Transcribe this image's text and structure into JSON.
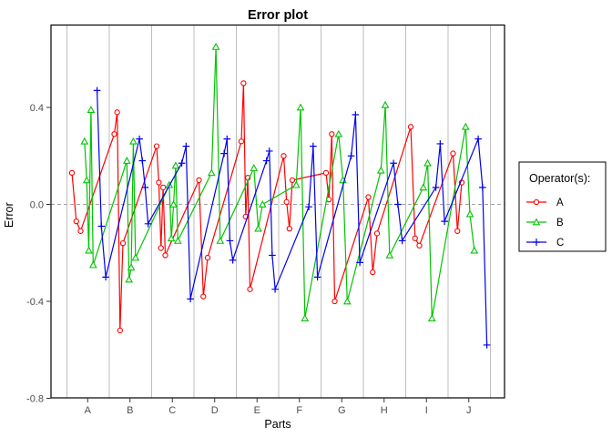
{
  "chart_data": {
    "type": "line",
    "title": "Error plot",
    "xlabel": "Parts",
    "ylabel": "Error",
    "categories": [
      "A",
      "B",
      "C",
      "D",
      "E",
      "F",
      "G",
      "H",
      "I",
      "J"
    ],
    "y_ticks": [
      "0.4",
      "0.0",
      "-0.4",
      "-0.8"
    ],
    "y_tick_values": [
      0.4,
      0.0,
      -0.4,
      -0.8
    ],
    "ylim": [
      -0.8,
      0.74
    ],
    "zero_line_value": 0.0,
    "grid": "vertical part separators",
    "legend_title": "Operator(s):",
    "legend_position": "right",
    "colors": {
      "operator_a": "#ff0000",
      "operator_b": "#00c400",
      "operator_c": "#0000ee",
      "separator_gray": "#bebebe",
      "zero_dash_gray": "#a3a3a3",
      "tick_label_gray": "#4d4d4d"
    },
    "series": [
      {
        "name": "A",
        "color": "#ff0000",
        "marker": "circle",
        "values_by_part": [
          [
            0.13,
            -0.07,
            -0.11
          ],
          [
            0.29,
            0.38,
            -0.52,
            -0.16
          ],
          [
            0.24,
            0.09,
            -0.18,
            0.07,
            -0.21
          ],
          [
            0.1,
            -0.38,
            -0.22
          ],
          [
            0.26,
            0.5,
            -0.05,
            0.11,
            -0.35
          ],
          [
            0.2,
            0.01,
            -0.1,
            0.1
          ],
          [
            0.13,
            0.02,
            0.29,
            -0.4
          ],
          [
            0.03,
            -0.28,
            -0.12
          ],
          [
            0.32,
            -0.14,
            -0.17
          ],
          [
            0.21,
            -0.11,
            0.09
          ]
        ]
      },
      {
        "name": "B",
        "color": "#00c400",
        "marker": "triangle",
        "values_by_part": [
          [
            0.26,
            0.1,
            -0.19,
            0.39,
            -0.25
          ],
          [
            0.18,
            -0.31,
            -0.26,
            0.26,
            -0.22
          ],
          [
            0.08,
            -0.14,
            0.0,
            0.16,
            -0.15
          ],
          [
            0.13,
            0.65,
            -0.15
          ],
          [
            0.15,
            -0.1,
            0.0
          ],
          [
            0.08,
            0.4,
            -0.47
          ],
          [
            0.29,
            0.1,
            -0.4
          ],
          [
            0.14,
            0.41,
            -0.21
          ],
          [
            0.07,
            0.17,
            -0.47
          ],
          [
            0.32,
            -0.04,
            -0.19
          ]
        ]
      },
      {
        "name": "C",
        "color": "#0000ee",
        "marker": "plus",
        "values_by_part": [
          [
            0.47,
            -0.09,
            -0.3
          ],
          [
            0.27,
            0.18,
            0.07,
            -0.08
          ],
          [
            0.17,
            0.24,
            -0.39
          ],
          [
            0.21,
            0.27,
            -0.15,
            -0.23
          ],
          [
            0.18,
            0.22,
            -0.21,
            -0.35
          ],
          [
            -0.01,
            0.24,
            -0.3
          ],
          [
            0.2,
            0.37,
            -0.24
          ],
          [
            0.17,
            0.0,
            -0.15
          ],
          [
            0.07,
            0.25,
            -0.07
          ],
          [
            0.27,
            0.07,
            -0.58
          ]
        ]
      }
    ]
  }
}
